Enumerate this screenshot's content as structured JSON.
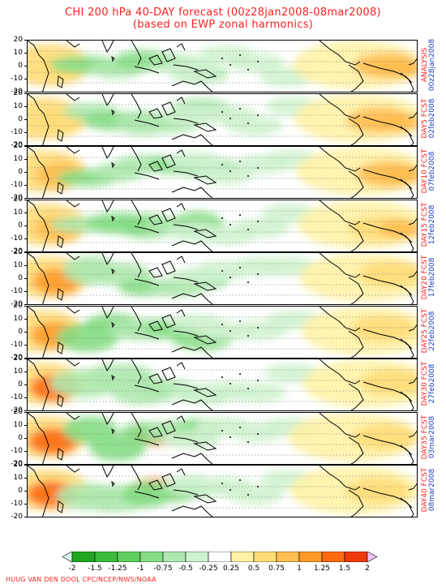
{
  "title_line1": "CHI 200 hPa 40-DAY forecast (00z28jan2008-08mar2008)",
  "title_line2": "(based on EWP zonal harmonics)",
  "y_axis_ticks": [
    "20",
    "10",
    "0",
    "-10",
    "-20"
  ],
  "panels": [
    {
      "label": "ANALYSIS",
      "date": "00z28jan2008"
    },
    {
      "label": "DAY5 FCST",
      "date": "02feb2008"
    },
    {
      "label": "DAY10 FCST",
      "date": "07feb2008"
    },
    {
      "label": "DAY15 FCST",
      "date": "12feb2008"
    },
    {
      "label": "DAY20 FCST",
      "date": "17feb2008"
    },
    {
      "label": "DAY25 FCST",
      "date": "22feb2008"
    },
    {
      "label": "DAY30 FCST",
      "date": "27feb2008"
    },
    {
      "label": "DAY35 FCST",
      "date": "03mar2008"
    },
    {
      "label": "DAY40 FCST",
      "date": "08mar2008"
    }
  ],
  "colorbar": {
    "labels": [
      "-2",
      "-1.5",
      "-1.25",
      "-1",
      "-0.75",
      "-0.5",
      "-0.25",
      "0.25",
      "0.5",
      "0.75",
      "1",
      "1.25",
      "1.5",
      "2"
    ],
    "colors": [
      "#1fa81f",
      "#3cbc3c",
      "#5ecf5e",
      "#86dd86",
      "#aee8ae",
      "#cff2cf",
      "#ffffff",
      "#fff2a6",
      "#ffdc78",
      "#ffbe50",
      "#ff9a28",
      "#ff6a0e",
      "#f03a0a"
    ],
    "low_end_color": "#d8f8f0",
    "high_end_color": "#f0c0f0"
  },
  "credit": "HUUG VAN DEN DOOL  CPC/NCEP/NWS/NOAA"
}
